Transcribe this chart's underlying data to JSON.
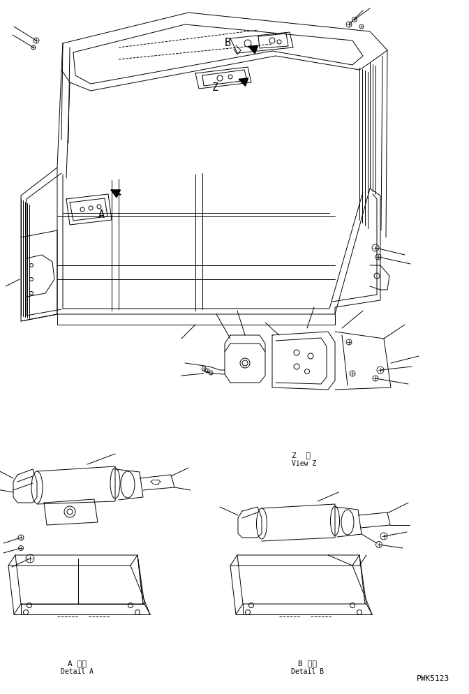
{
  "background_color": "#ffffff",
  "line_color": "#000000",
  "label_A_jp": "A 詳細",
  "label_A_en": "Detail A",
  "label_B_jp": "B 詳細",
  "label_B_en": "Detail B",
  "label_Z_jp": "Z  視",
  "label_Z_en": "View Z",
  "part_number": "PWK5123",
  "letter_B": "B",
  "letter_Z": "Z",
  "letter_A": "A",
  "fig_width": 6.72,
  "fig_height": 9.94,
  "dpi": 100
}
